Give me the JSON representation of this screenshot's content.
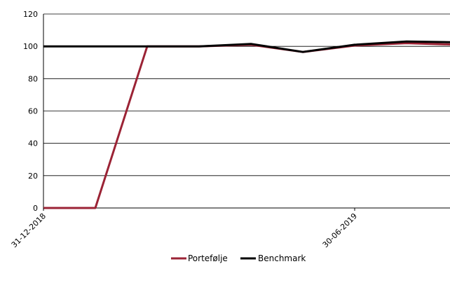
{
  "chart_data": {
    "type": "line",
    "title": "",
    "xlabel": "",
    "ylabel": "",
    "ylim": [
      0,
      120
    ],
    "yticks": [
      0,
      20,
      40,
      60,
      80,
      100,
      120
    ],
    "grid": true,
    "legend_position": "bottom",
    "x": [
      "2018-12-31",
      "2019-01-31",
      "2019-02-28",
      "2019-03-31",
      "2019-04-30",
      "2019-05-31",
      "2019-06-30",
      "2019-07-31",
      "2019-08-31"
    ],
    "x_tick_labels": [
      "31-12-2018",
      "30-06-2019"
    ],
    "x_tick_positions": [
      "2018-12-31",
      "2019-06-30"
    ],
    "series": [
      {
        "name": "Portefølje",
        "color": "#9b2335",
        "values": [
          0,
          0,
          100,
          100,
          101,
          96.5,
          100.5,
          102,
          101
        ]
      },
      {
        "name": "Benchmark",
        "color": "#000000",
        "values": [
          100,
          100,
          100,
          100,
          101.5,
          96.5,
          101,
          103,
          102.5
        ]
      }
    ]
  }
}
